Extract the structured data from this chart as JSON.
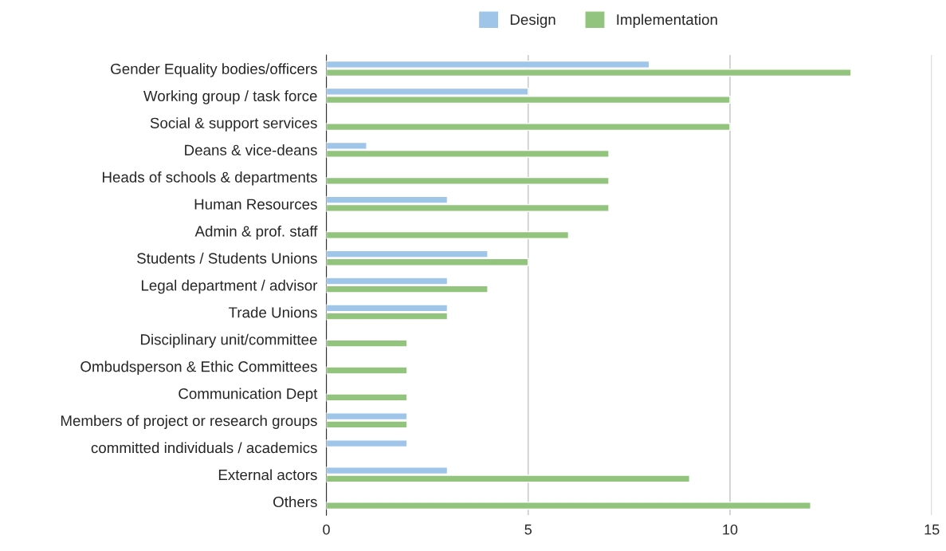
{
  "chart_data": {
    "type": "bar",
    "orientation": "horizontal",
    "categories": [
      "Gender Equality bodies/officers",
      "Working group / task force",
      "Social & support services",
      "Deans & vice-deans",
      "Heads of schools & departments",
      "Human Resources",
      "Admin & prof. staff",
      "Students / Students Unions",
      "Legal department / advisor",
      "Trade Unions",
      "Disciplinary unit/committee",
      "Ombudsperson & Ethic Committees",
      "Communication Dept",
      "Members of project or research groups",
      "committed individuals / academics",
      "External actors",
      "Others"
    ],
    "series": [
      {
        "name": "Design",
        "color": "#9fc5e8",
        "values": [
          8,
          5,
          null,
          1,
          null,
          3,
          null,
          4,
          3,
          3,
          null,
          null,
          null,
          2,
          2,
          3,
          null
        ]
      },
      {
        "name": "Implementation",
        "color": "#93c47d",
        "values": [
          13,
          10,
          10,
          7,
          7,
          7,
          6,
          5,
          4,
          3,
          2,
          2,
          2,
          2,
          null,
          9,
          12
        ]
      }
    ],
    "xlim": [
      0,
      15
    ],
    "xticks": [
      0,
      5,
      10,
      15
    ],
    "grid": "x",
    "legend": "top"
  }
}
